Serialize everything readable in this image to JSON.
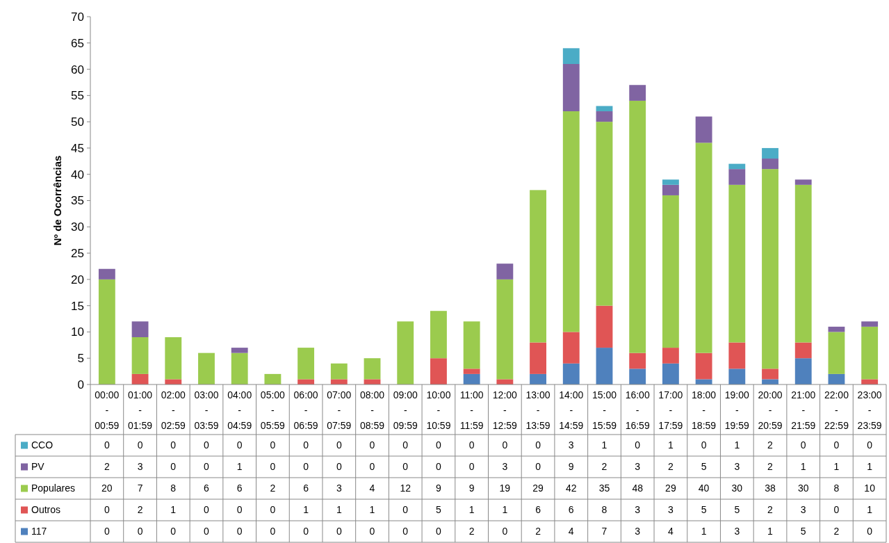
{
  "chart_data": {
    "type": "bar",
    "stacked": true,
    "ylabel": "Nº de Ocorrências",
    "ylim": [
      0,
      70
    ],
    "yticks": [
      0,
      5,
      10,
      15,
      20,
      25,
      30,
      35,
      40,
      45,
      50,
      55,
      60,
      65,
      70
    ],
    "grid": false,
    "legend": "bottom",
    "data_labels": true,
    "categories": [
      "00:00 - 00:59",
      "01:00 - 01:59",
      "02:00 - 02:59",
      "03:00 - 03:59",
      "04:00 - 04:59",
      "05:00 - 05:59",
      "06:00 - 06:59",
      "07:00 - 07:59",
      "08:00 - 08:59",
      "09:00 - 09:59",
      "10:00 - 10:59",
      "11:00 - 11:59",
      "12:00 - 12:59",
      "13:00 - 13:59",
      "14:00 - 14:59",
      "15:00 - 15:59",
      "16:00 - 16:59",
      "17:00 - 17:59",
      "18:00 - 18:59",
      "19:00 - 19:59",
      "20:00 - 20:59",
      "21:00 - 21:59",
      "22:00 - 22:59",
      "23:00 - 23:59"
    ],
    "series": [
      {
        "name": "117",
        "color": "#4f81bd",
        "values": [
          0,
          0,
          0,
          0,
          0,
          0,
          0,
          0,
          0,
          0,
          0,
          2,
          0,
          2,
          4,
          7,
          3,
          4,
          1,
          3,
          1,
          5,
          2,
          0
        ]
      },
      {
        "name": "Outros",
        "color": "#e05555",
        "values": [
          0,
          2,
          1,
          0,
          0,
          0,
          1,
          1,
          1,
          0,
          5,
          1,
          1,
          6,
          6,
          8,
          3,
          3,
          5,
          5,
          2,
          3,
          0,
          1
        ]
      },
      {
        "name": "Populares",
        "color": "#9bcb4e",
        "values": [
          20,
          7,
          8,
          6,
          6,
          2,
          6,
          3,
          4,
          12,
          9,
          9,
          19,
          29,
          42,
          35,
          48,
          29,
          40,
          30,
          38,
          30,
          8,
          10
        ]
      },
      {
        "name": "PV",
        "color": "#8064a2",
        "values": [
          2,
          3,
          0,
          0,
          1,
          0,
          0,
          0,
          0,
          0,
          0,
          0,
          3,
          0,
          9,
          2,
          3,
          2,
          5,
          3,
          2,
          1,
          1,
          1
        ]
      },
      {
        "name": "CCO",
        "color": "#4bacc6",
        "values": [
          0,
          0,
          0,
          0,
          0,
          0,
          0,
          0,
          0,
          0,
          0,
          0,
          0,
          0,
          3,
          1,
          0,
          1,
          0,
          1,
          2,
          0,
          0,
          0
        ]
      }
    ]
  }
}
